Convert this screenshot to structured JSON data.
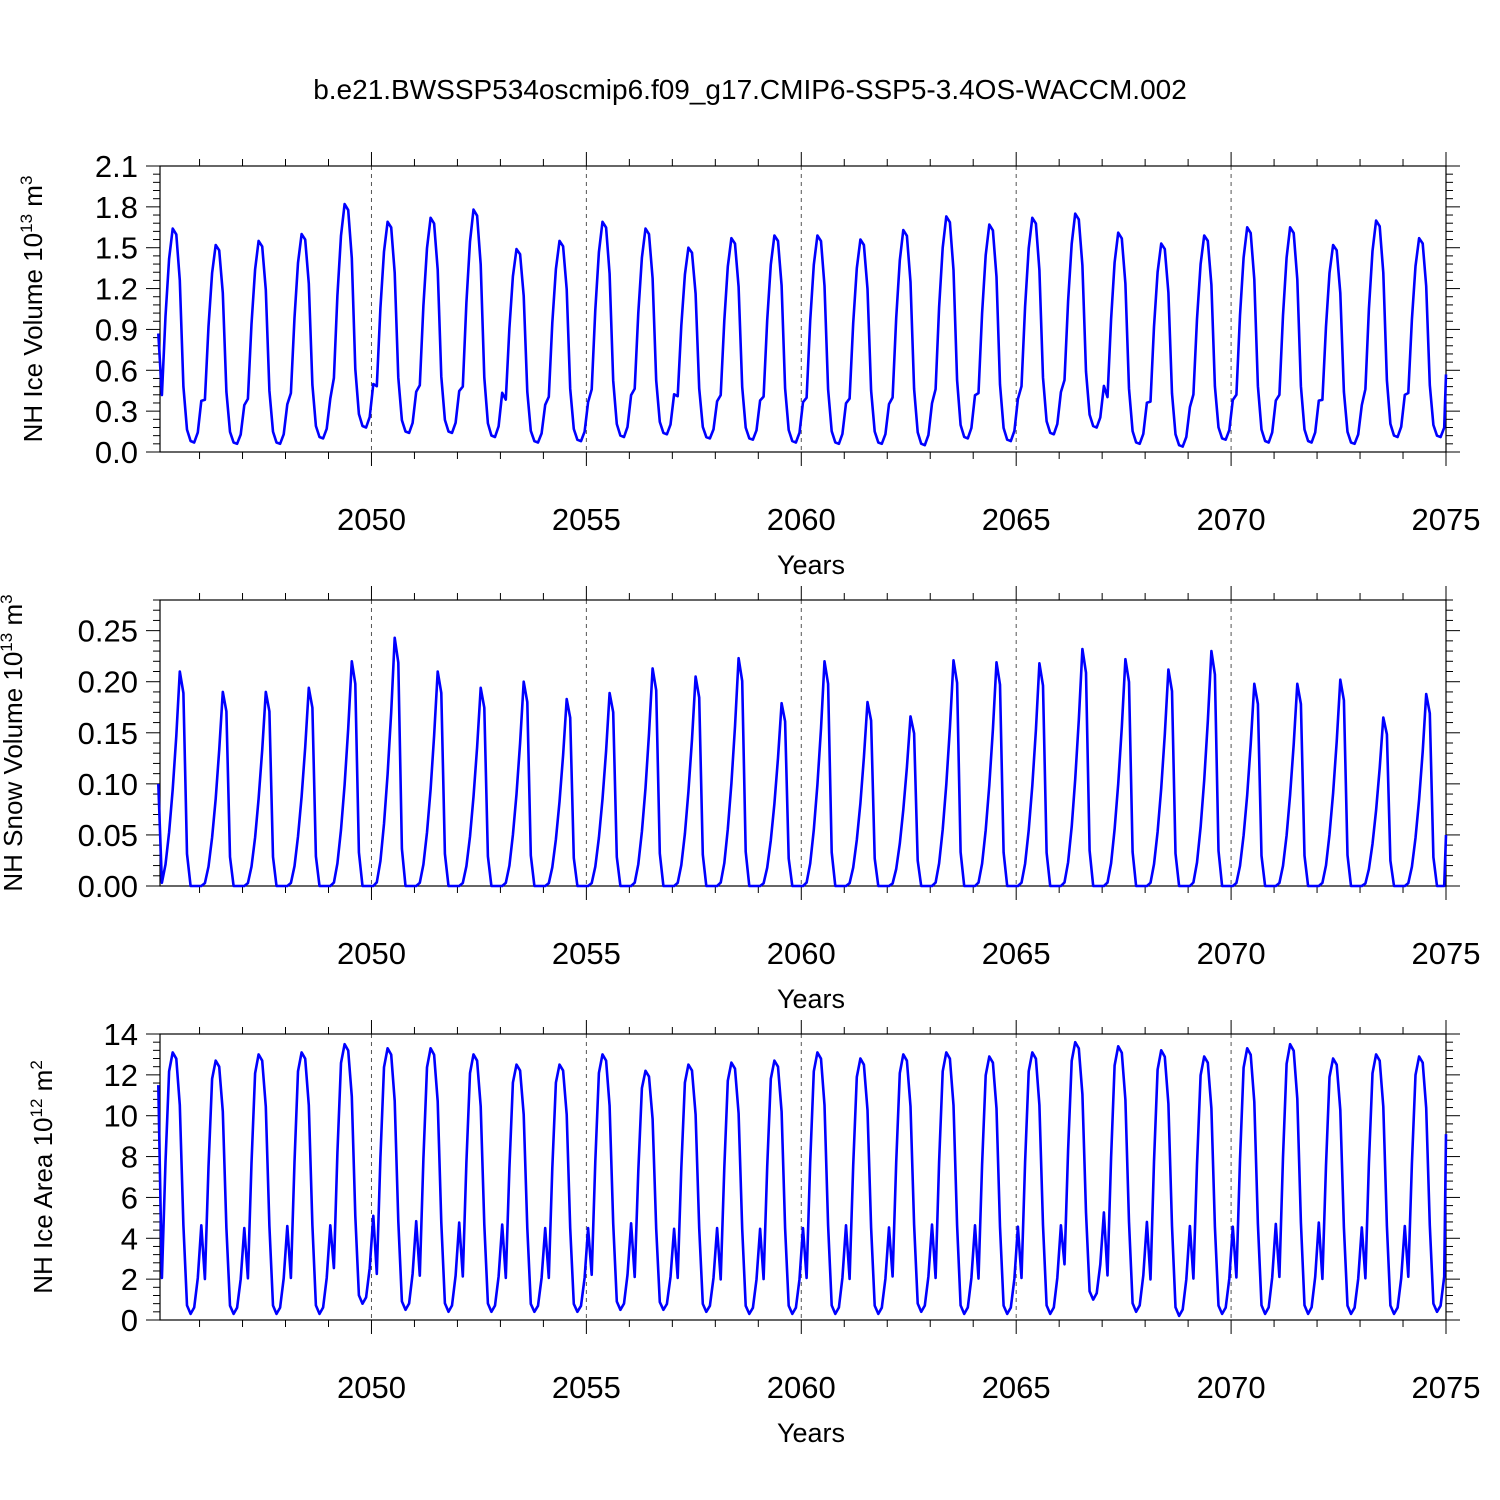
{
  "title": "b.e21.BWSSP534oscmip6.f09_g17.CMIP6-SSP5-3.4OS-WACCM.002",
  "colors": {
    "series": "#0000ff",
    "axes": "#000000",
    "grid": "#555555"
  },
  "chart_data": [
    {
      "type": "line",
      "id": "ice-volume",
      "ylabel_main": "NH Ice Volume 10",
      "ylabel_sup": "13",
      "ylabel_unit": " m",
      "ylabel_unit_sup": "3",
      "xlabel": "Years",
      "xlim": [
        2045.08,
        2075.0
      ],
      "ylim": [
        0.0,
        2.1
      ],
      "yticks": [
        "0.0",
        "0.3",
        "0.6",
        "0.9",
        "1.2",
        "1.5",
        "1.8",
        "2.1"
      ],
      "xticks": [
        "2050",
        "2055",
        "2060",
        "2065",
        "2070",
        "2075"
      ],
      "x_start": 2045.125,
      "x_step": 0.08333,
      "season": [
        0.4,
        0.95,
        1.35,
        1.56,
        1.52,
        1.2,
        0.46,
        0.16,
        0.08,
        0.07,
        0.14,
        0.36
      ],
      "annual_max": [
        1.64,
        1.52,
        1.55,
        1.6,
        1.82,
        1.69,
        1.72,
        1.78,
        1.49,
        1.55,
        1.69,
        1.64,
        1.5,
        1.57,
        1.59,
        1.59,
        1.56,
        1.63,
        1.73,
        1.67,
        1.72,
        1.75,
        1.61,
        1.53,
        1.59,
        1.65,
        1.65,
        1.52,
        1.7,
        1.57
      ],
      "annual_min": [
        0.07,
        0.06,
        0.06,
        0.1,
        0.18,
        0.14,
        0.14,
        0.11,
        0.07,
        0.08,
        0.11,
        0.13,
        0.1,
        0.09,
        0.07,
        0.06,
        0.06,
        0.05,
        0.1,
        0.08,
        0.13,
        0.18,
        0.06,
        0.04,
        0.09,
        0.07,
        0.07,
        0.06,
        0.11,
        0.11
      ],
      "x_first": 2045.04,
      "y_first": 0.87,
      "x_last": 2075.0,
      "y_last": 0.57,
      "grid": "dashed verticals at major x ticks"
    },
    {
      "type": "line",
      "id": "snow-volume",
      "ylabel_main": "NH Snow Volume 10",
      "ylabel_sup": "13",
      "ylabel_unit": " m",
      "ylabel_unit_sup": "3",
      "xlabel": "Years",
      "xlim": [
        2045.08,
        2075.0
      ],
      "ylim": [
        0.0,
        0.28
      ],
      "yticks": [
        "0.00",
        "0.05",
        "0.10",
        "0.15",
        "0.20",
        "0.25"
      ],
      "xticks": [
        "2050",
        "2055",
        "2060",
        "2065",
        "2070",
        "2075"
      ],
      "x_start": 2045.125,
      "x_step": 0.08333,
      "season": [
        0.003,
        0.02,
        0.05,
        0.09,
        0.14,
        0.2,
        0.18,
        0.03,
        0.0,
        0.0,
        0.0,
        0.0
      ],
      "annual_max": [
        0.21,
        0.19,
        0.19,
        0.194,
        0.22,
        0.243,
        0.21,
        0.194,
        0.2,
        0.183,
        0.189,
        0.213,
        0.205,
        0.223,
        0.179,
        0.22,
        0.18,
        0.166,
        0.221,
        0.219,
        0.218,
        0.232,
        0.222,
        0.212,
        0.23,
        0.198,
        0.198,
        0.202,
        0.165,
        0.188
      ],
      "x_first": 2045.04,
      "y_first": 0.1,
      "x_last": 2075.0,
      "y_last": 0.05,
      "grid": "dashed verticals at major x ticks"
    },
    {
      "type": "line",
      "id": "ice-area",
      "ylabel_main": "NH Ice Area 10",
      "ylabel_sup": "12",
      "ylabel_unit": " m",
      "ylabel_unit_sup": "2",
      "xlabel": "Years",
      "xlim": [
        2045.08,
        2075.0
      ],
      "ylim": [
        0,
        14
      ],
      "yticks": [
        "0",
        "2",
        "4",
        "6",
        "8",
        "10",
        "12",
        "14"
      ],
      "xticks": [
        "2050",
        "2055",
        "2060",
        "2065",
        "2070",
        "2075"
      ],
      "x_start": 2045.125,
      "x_step": 0.08333,
      "season": [
        2.0,
        7.5,
        11.8,
        12.7,
        12.4,
        10.2,
        4.5,
        0.7,
        0.3,
        0.6,
        2.0,
        4.5
      ],
      "annual_max": [
        13.1,
        12.7,
        13.0,
        13.1,
        13.5,
        13.3,
        13.3,
        13.0,
        12.5,
        12.5,
        13.0,
        12.2,
        12.5,
        12.6,
        12.7,
        13.1,
        12.8,
        13.0,
        13.1,
        12.9,
        13.1,
        13.6,
        13.4,
        13.2,
        12.9,
        13.3,
        13.5,
        12.8,
        13.0,
        12.9
      ],
      "annual_min": [
        0.3,
        0.3,
        0.3,
        0.3,
        0.8,
        0.5,
        0.4,
        0.4,
        0.4,
        0.4,
        0.5,
        0.5,
        0.4,
        0.3,
        0.3,
        0.3,
        0.3,
        0.4,
        0.3,
        0.3,
        0.3,
        1.0,
        0.4,
        0.2,
        0.3,
        0.3,
        0.3,
        0.3,
        0.3,
        0.4
      ],
      "x_first": 2045.04,
      "y_first": 11.5,
      "x_last": 2075.0,
      "y_last": 9.1,
      "grid": "dashed verticals at major x ticks"
    }
  ]
}
